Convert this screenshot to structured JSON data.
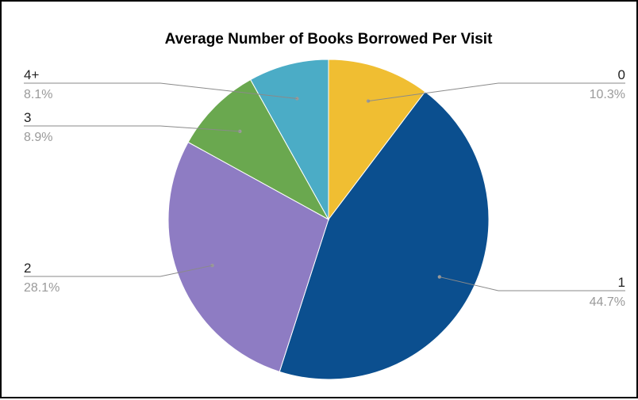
{
  "chart_data": {
    "type": "pie",
    "title": "Average Number of Books Borrowed Per Visit",
    "categories": [
      "0",
      "1",
      "2",
      "3",
      "4+"
    ],
    "values": [
      10.3,
      44.7,
      28.1,
      8.9,
      8.1
    ],
    "value_labels": [
      "10.3%",
      "44.7%",
      "28.1%",
      "8.9%",
      "8.1%"
    ],
    "colors": [
      "#f0be32",
      "#0b4f8f",
      "#8e7cc3",
      "#6aa84f",
      "#4bacc6"
    ],
    "start_angle_deg": 0,
    "direction": "clockwise",
    "legend": "none"
  }
}
